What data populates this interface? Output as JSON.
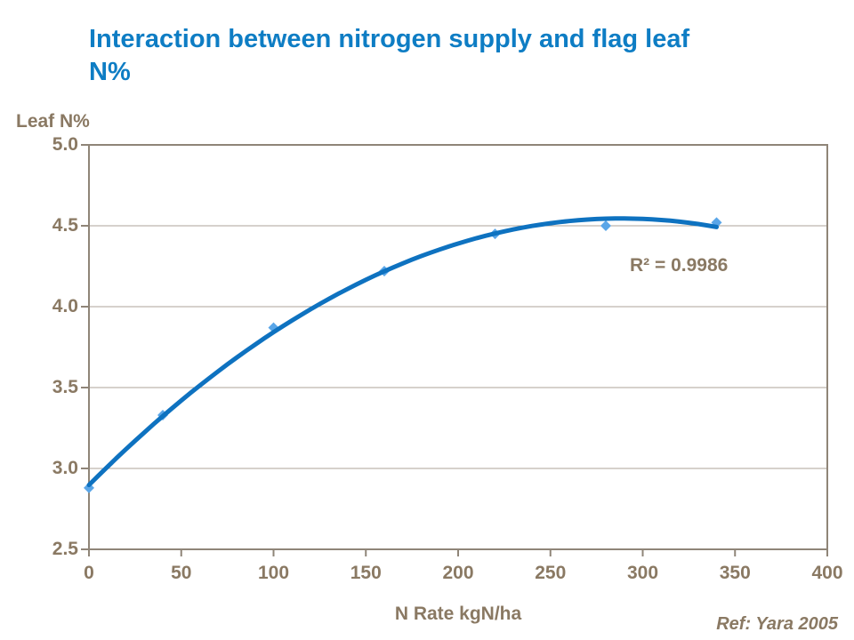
{
  "title_lines": [
    "Interaction between nitrogen supply and flag leaf",
    "N%"
  ],
  "footer": {
    "ref": "Ref: Yara 2005"
  },
  "colors": {
    "title_blue": "#0E7DC4",
    "text_brown": "#8A7963",
    "frame": "#8F8578",
    "grid": "#ACA399",
    "line_blue": "#0E72C0",
    "marker_blue": "#5AA6E8",
    "background": "#FFFFFF"
  },
  "chart_data": {
    "type": "scatter",
    "title": "Interaction between nitrogen supply and flag leaf N%",
    "xlabel": "N Rate kgN/ha",
    "ylabel": "Leaf N%",
    "x": [
      0,
      40,
      100,
      160,
      220,
      280,
      340
    ],
    "y": [
      2.88,
      3.33,
      3.87,
      4.22,
      4.45,
      4.5,
      4.52
    ],
    "xlim": [
      0,
      400
    ],
    "ylim": [
      2.5,
      5.0
    ],
    "x_ticks": [
      "0",
      "50",
      "100",
      "150",
      "200",
      "250",
      "300",
      "350",
      "400"
    ],
    "y_ticks": [
      "5.0",
      "4.5",
      "4.0",
      "3.5",
      "3.0",
      "2.5"
    ],
    "grid": "horizontal",
    "legend": "none",
    "marker": "diamond",
    "trendline": {
      "type": "polynomial",
      "order": 2,
      "coefficients": [
        2.8979,
        0.0114232,
        -1.9805e-05
      ],
      "x_range": [
        0,
        340
      ],
      "r2_label": "R² = 0.9986"
    }
  }
}
